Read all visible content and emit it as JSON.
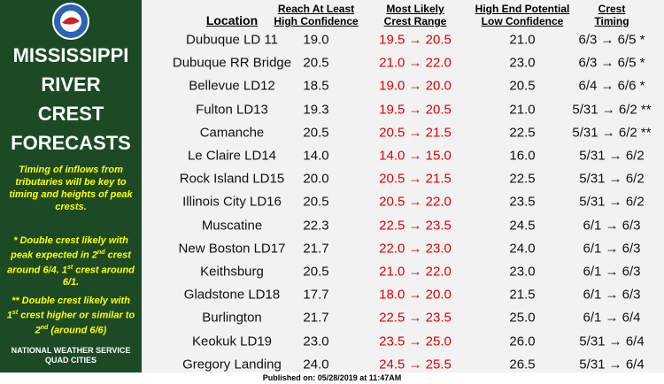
{
  "panel": {
    "title": [
      "MISSISSIPPI",
      "RIVER",
      "CREST",
      "FORECASTS"
    ],
    "intro": "Timing of inflows from tributaries will be key to timing and heights of peak crests.",
    "note1": [
      "* Double crest likely with peak expected in 2",
      "nd",
      " crest around 6/4. 1",
      "st",
      " crest around 6/1."
    ],
    "note2": [
      "** Double crest likely with 1",
      "st",
      " crest higher or similar to 2",
      "nd",
      " (around 6/6)"
    ],
    "office": [
      "NATIONAL WEATHER SERVICE",
      "QUAD CITIES"
    ]
  },
  "table": {
    "headers": [
      [
        "Location"
      ],
      [
        "Reach At Least",
        "High Confidence"
      ],
      [
        "Most Likely",
        "Crest Range"
      ],
      [
        "High End Potential",
        "Low Confidence"
      ],
      [
        "Crest",
        "Timing"
      ]
    ],
    "rows": [
      [
        "Dubuque LD 11",
        "19.0",
        "19.5 → 20.5",
        "21.0",
        "6/3 → 6/5 *"
      ],
      [
        "Dubuque RR Bridge",
        "20.5",
        "21.0 → 22.0",
        "23.0",
        "6/3 → 6/5 *"
      ],
      [
        "Bellevue LD12",
        "18.5",
        "19.0 → 20.0",
        "20.5",
        "6/4 → 6/6 *"
      ],
      [
        "Fulton LD13",
        "19.3",
        "19.5 → 20.5",
        "21.0",
        "5/31 → 6/2 **"
      ],
      [
        "Camanche",
        "20.5",
        "20.5 → 21.5",
        "22.5",
        "5/31 → 6/2 **"
      ],
      [
        "Le Claire LD14",
        "14.0",
        "14.0 → 15.0",
        "16.0",
        "5/31 → 6/2"
      ],
      [
        "Rock Island LD15",
        "20.0",
        "20.5 → 21.5",
        "22.5",
        "5/31 → 6/2"
      ],
      [
        "Illinois City LD16",
        "20.5",
        "20.5 → 22.0",
        "23.5",
        "5/31 → 6/2"
      ],
      [
        "Muscatine",
        "22.3",
        "22.5 → 23.5",
        "24.5",
        "6/1 → 6/3"
      ],
      [
        "New Boston LD17",
        "21.7",
        "22.0 → 23.0",
        "24.0",
        "6/1 → 6/3"
      ],
      [
        "Keithsburg",
        "20.5",
        "21.0 → 22.0",
        "23.0",
        "6/1 → 6/3"
      ],
      [
        "Gladstone LD18",
        "17.7",
        "18.0 → 20.0",
        "21.5",
        "6/1 → 6/3"
      ],
      [
        "Burlington",
        "21.7",
        "22.5 → 23.5",
        "25.0",
        "6/1 → 6/4"
      ],
      [
        "Keokuk LD19",
        "23.0",
        "23.5 → 25.0",
        "26.0",
        "5/31 → 6/4"
      ],
      [
        "Gregory Landing",
        "24.0",
        "24.5 → 25.5",
        "26.5",
        "5/31 → 6/4"
      ]
    ]
  },
  "footer": "Published on: 05/28/2019 at 11:47AM"
}
